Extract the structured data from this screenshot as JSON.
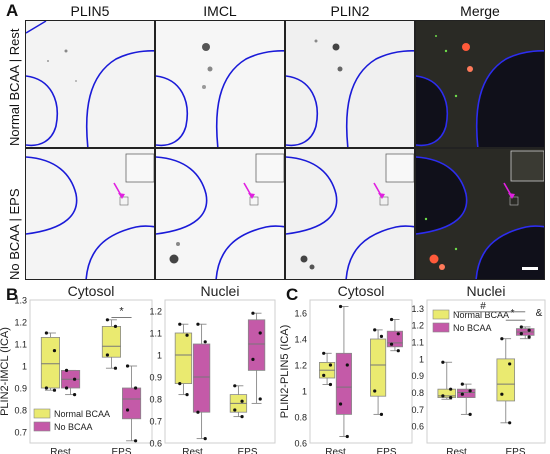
{
  "panel_a": {
    "letter": "A",
    "columns": [
      {
        "label": "PLIN5",
        "color": "#3cb43c"
      },
      {
        "label": "IMCL",
        "color": "#e0302a"
      },
      {
        "label": "PLIN2",
        "color": "#8a8a8a"
      },
      {
        "label": "Merge",
        "color": "#111111"
      }
    ],
    "rows": [
      "Normal BCAA | Rest",
      "No BCAA | EPS"
    ]
  },
  "panel_b": {
    "letter": "B"
  },
  "panel_c": {
    "letter": "C"
  },
  "colors": {
    "normal_bcaa": "#eaea70",
    "no_bcaa": "#c45aa8",
    "nucleus_outline": "#1a1ad8",
    "arrow": "#e020e0"
  },
  "chart_data": [
    {
      "type": "box",
      "panel": "B",
      "title": "Cytosol",
      "ylabel": "PLIN2-IMCL (ICA)",
      "categories": [
        "Rest",
        "EPS"
      ],
      "ylim": [
        0.65,
        1.3
      ],
      "yticks": [
        0.7,
        0.8,
        0.9,
        1.0,
        1.1,
        1.2,
        1.3
      ],
      "ytick_labels": [
        "0.7",
        "0.8",
        "0.9",
        "1",
        "1.1",
        "1.2",
        "1.3"
      ],
      "legend": [
        "Normal BCAA",
        "No BCAA"
      ],
      "legend_position": "bottom-left",
      "significance": [
        "*"
      ],
      "series": [
        {
          "name": "Normal BCAA",
          "boxes": [
            {
              "min": 0.89,
              "q1": 0.9,
              "median": 1.01,
              "q3": 1.13,
              "max": 1.15,
              "points": [
                1.15,
                1.07,
                0.9,
                0.89
              ]
            },
            {
              "min": 0.99,
              "q1": 1.04,
              "median": 1.09,
              "q3": 1.18,
              "max": 1.21,
              "points": [
                1.21,
                1.18,
                1.05,
                0.99
              ]
            }
          ]
        },
        {
          "name": "No BCAA",
          "boxes": [
            {
              "min": 0.87,
              "q1": 0.9,
              "median": 0.94,
              "q3": 0.98,
              "max": 0.98,
              "points": [
                0.98,
                0.94,
                0.9,
                0.87
              ]
            },
            {
              "min": 0.66,
              "q1": 0.76,
              "median": 0.85,
              "q3": 0.9,
              "max": 1.0,
              "points": [
                1.0,
                0.9,
                0.8,
                0.66
              ]
            }
          ]
        }
      ]
    },
    {
      "type": "box",
      "panel": "B",
      "title": "Nuclei",
      "ylabel": "",
      "categories": [
        "Rest",
        "EPS"
      ],
      "ylim": [
        0.6,
        1.25
      ],
      "yticks": [
        0.6,
        0.7,
        0.8,
        0.9,
        1.0,
        1.1,
        1.2
      ],
      "ytick_labels": [
        "0.6",
        "0.7",
        "0.8",
        "0.9",
        "1",
        "1.1",
        "1.2"
      ],
      "series": [
        {
          "name": "Normal BCAA",
          "boxes": [
            {
              "min": 0.82,
              "q1": 0.87,
              "median": 1.0,
              "q3": 1.1,
              "max": 1.14,
              "points": [
                1.14,
                1.09,
                0.87,
                0.82
              ]
            },
            {
              "min": 0.72,
              "q1": 0.74,
              "median": 0.78,
              "q3": 0.82,
              "max": 0.86,
              "points": [
                0.86,
                0.79,
                0.75,
                0.72
              ]
            }
          ]
        },
        {
          "name": "No BCAA",
          "boxes": [
            {
              "min": 0.62,
              "q1": 0.74,
              "median": 0.9,
              "q3": 1.05,
              "max": 1.14,
              "points": [
                1.14,
                1.06,
                0.74,
                0.62
              ]
            },
            {
              "min": 0.78,
              "q1": 0.93,
              "median": 1.05,
              "q3": 1.16,
              "max": 1.19,
              "points": [
                1.19,
                1.1,
                0.98,
                0.8
              ]
            }
          ]
        }
      ]
    },
    {
      "type": "box",
      "panel": "C",
      "title": "Cytosol",
      "ylabel": "PLIN2-PLIN5 (ICA)",
      "categories": [
        "Rest",
        "EPS"
      ],
      "ylim": [
        0.6,
        1.7
      ],
      "yticks": [
        0.6,
        0.8,
        1.0,
        1.2,
        1.4,
        1.6
      ],
      "ytick_labels": [
        "0.6",
        "0.8",
        "1",
        "1.2",
        "1.4",
        "1.6"
      ],
      "series": [
        {
          "name": "Normal BCAA",
          "boxes": [
            {
              "min": 1.05,
              "q1": 1.1,
              "median": 1.16,
              "q3": 1.22,
              "max": 1.29,
              "points": [
                1.29,
                1.2,
                1.12,
                1.05
              ]
            },
            {
              "min": 0.82,
              "q1": 0.96,
              "median": 1.2,
              "q3": 1.4,
              "max": 1.47,
              "points": [
                1.47,
                1.42,
                1.0,
                0.82
              ]
            }
          ]
        },
        {
          "name": "No BCAA",
          "boxes": [
            {
              "min": 0.65,
              "q1": 0.82,
              "median": 1.03,
              "q3": 1.29,
              "max": 1.65,
              "points": [
                1.65,
                1.2,
                0.9,
                0.65
              ]
            },
            {
              "min": 1.31,
              "q1": 1.34,
              "median": 1.37,
              "q3": 1.46,
              "max": 1.55,
              "points": [
                1.55,
                1.44,
                1.36,
                1.31
              ]
            }
          ]
        }
      ]
    },
    {
      "type": "box",
      "panel": "C",
      "title": "Nuclei",
      "ylabel": "",
      "categories": [
        "Rest",
        "EPS"
      ],
      "ylim": [
        0.5,
        1.35
      ],
      "yticks": [
        0.6,
        0.7,
        0.8,
        0.9,
        1.0,
        1.1,
        1.2,
        1.3
      ],
      "ytick_labels": [
        "0.6",
        "0.7",
        "0.8",
        "0.9",
        "1",
        "1.1",
        "1.2",
        "1.3"
      ],
      "legend": [
        "Normal BCAA",
        "No BCAA"
      ],
      "legend_position": "top-left",
      "significance": [
        "#",
        "*",
        "&"
      ],
      "series": [
        {
          "name": "Normal BCAA",
          "boxes": [
            {
              "min": 0.76,
              "q1": 0.77,
              "median": 0.78,
              "q3": 0.82,
              "max": 0.98,
              "points": [
                0.98,
                0.82,
                0.78,
                0.77
              ]
            },
            {
              "min": 0.62,
              "q1": 0.75,
              "median": 0.85,
              "q3": 1.0,
              "max": 1.12,
              "points": [
                1.12,
                0.97,
                0.79,
                0.62
              ]
            }
          ]
        },
        {
          "name": "No BCAA",
          "boxes": [
            {
              "min": 0.67,
              "q1": 0.77,
              "median": 0.8,
              "q3": 0.82,
              "max": 0.85,
              "points": [
                0.85,
                0.81,
                0.79,
                0.67
              ]
            },
            {
              "min": 1.12,
              "q1": 1.14,
              "median": 1.16,
              "q3": 1.18,
              "max": 1.19,
              "points": [
                1.19,
                1.17,
                1.15,
                1.13
              ]
            }
          ]
        }
      ]
    }
  ]
}
